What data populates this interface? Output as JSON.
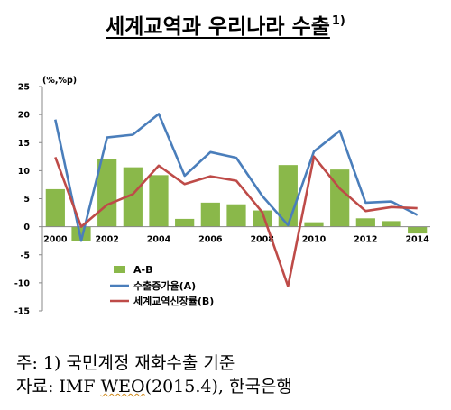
{
  "title": {
    "text": "세계교역과 우리나라 수출",
    "sup": "1)"
  },
  "chart_data": {
    "type": "bar+line",
    "unit_label": "(%,%p)",
    "x": [
      2000,
      2001,
      2002,
      2003,
      2004,
      2005,
      2006,
      2007,
      2008,
      2009,
      2010,
      2011,
      2012,
      2013,
      2014
    ],
    "x_tick_labels": [
      "2000",
      "2002",
      "2004",
      "2006",
      "2008",
      "2010",
      "2012",
      "2014"
    ],
    "ylim": [
      -15,
      25
    ],
    "y_ticks": [
      "25",
      "20",
      "15",
      "10",
      "5",
      "0",
      "-5",
      "-10",
      "-15"
    ],
    "series": [
      {
        "name": "A-B",
        "type": "bar",
        "color": "#8ab84a",
        "values": [
          6.7,
          -2.5,
          12.0,
          10.6,
          9.2,
          1.4,
          4.3,
          4.0,
          2.9,
          11.0,
          0.8,
          10.2,
          1.5,
          1.0,
          -1.2
        ]
      },
      {
        "name": "수출증가율(A)",
        "type": "line",
        "color": "#4a7ebb",
        "values": [
          19.1,
          -2.5,
          15.9,
          16.4,
          20.1,
          9.1,
          13.3,
          12.3,
          5.5,
          0.3,
          13.4,
          17.1,
          4.3,
          4.5,
          2.1
        ]
      },
      {
        "name": "세계교역신장률(B)",
        "type": "line",
        "color": "#be4b48",
        "values": [
          12.4,
          0.0,
          3.9,
          5.8,
          10.9,
          7.6,
          9.0,
          8.2,
          2.6,
          -10.6,
          12.5,
          6.8,
          2.8,
          3.5,
          3.3
        ]
      }
    ],
    "grid": false,
    "legend_position": "bottom-left"
  },
  "notes": {
    "line1": "주: 1) 국민계정 재화수출 기준",
    "line2_prefix": "자료: IMF ",
    "line2_weo": "WEO",
    "line2_suffix": "(2015.4), 한국은행"
  }
}
